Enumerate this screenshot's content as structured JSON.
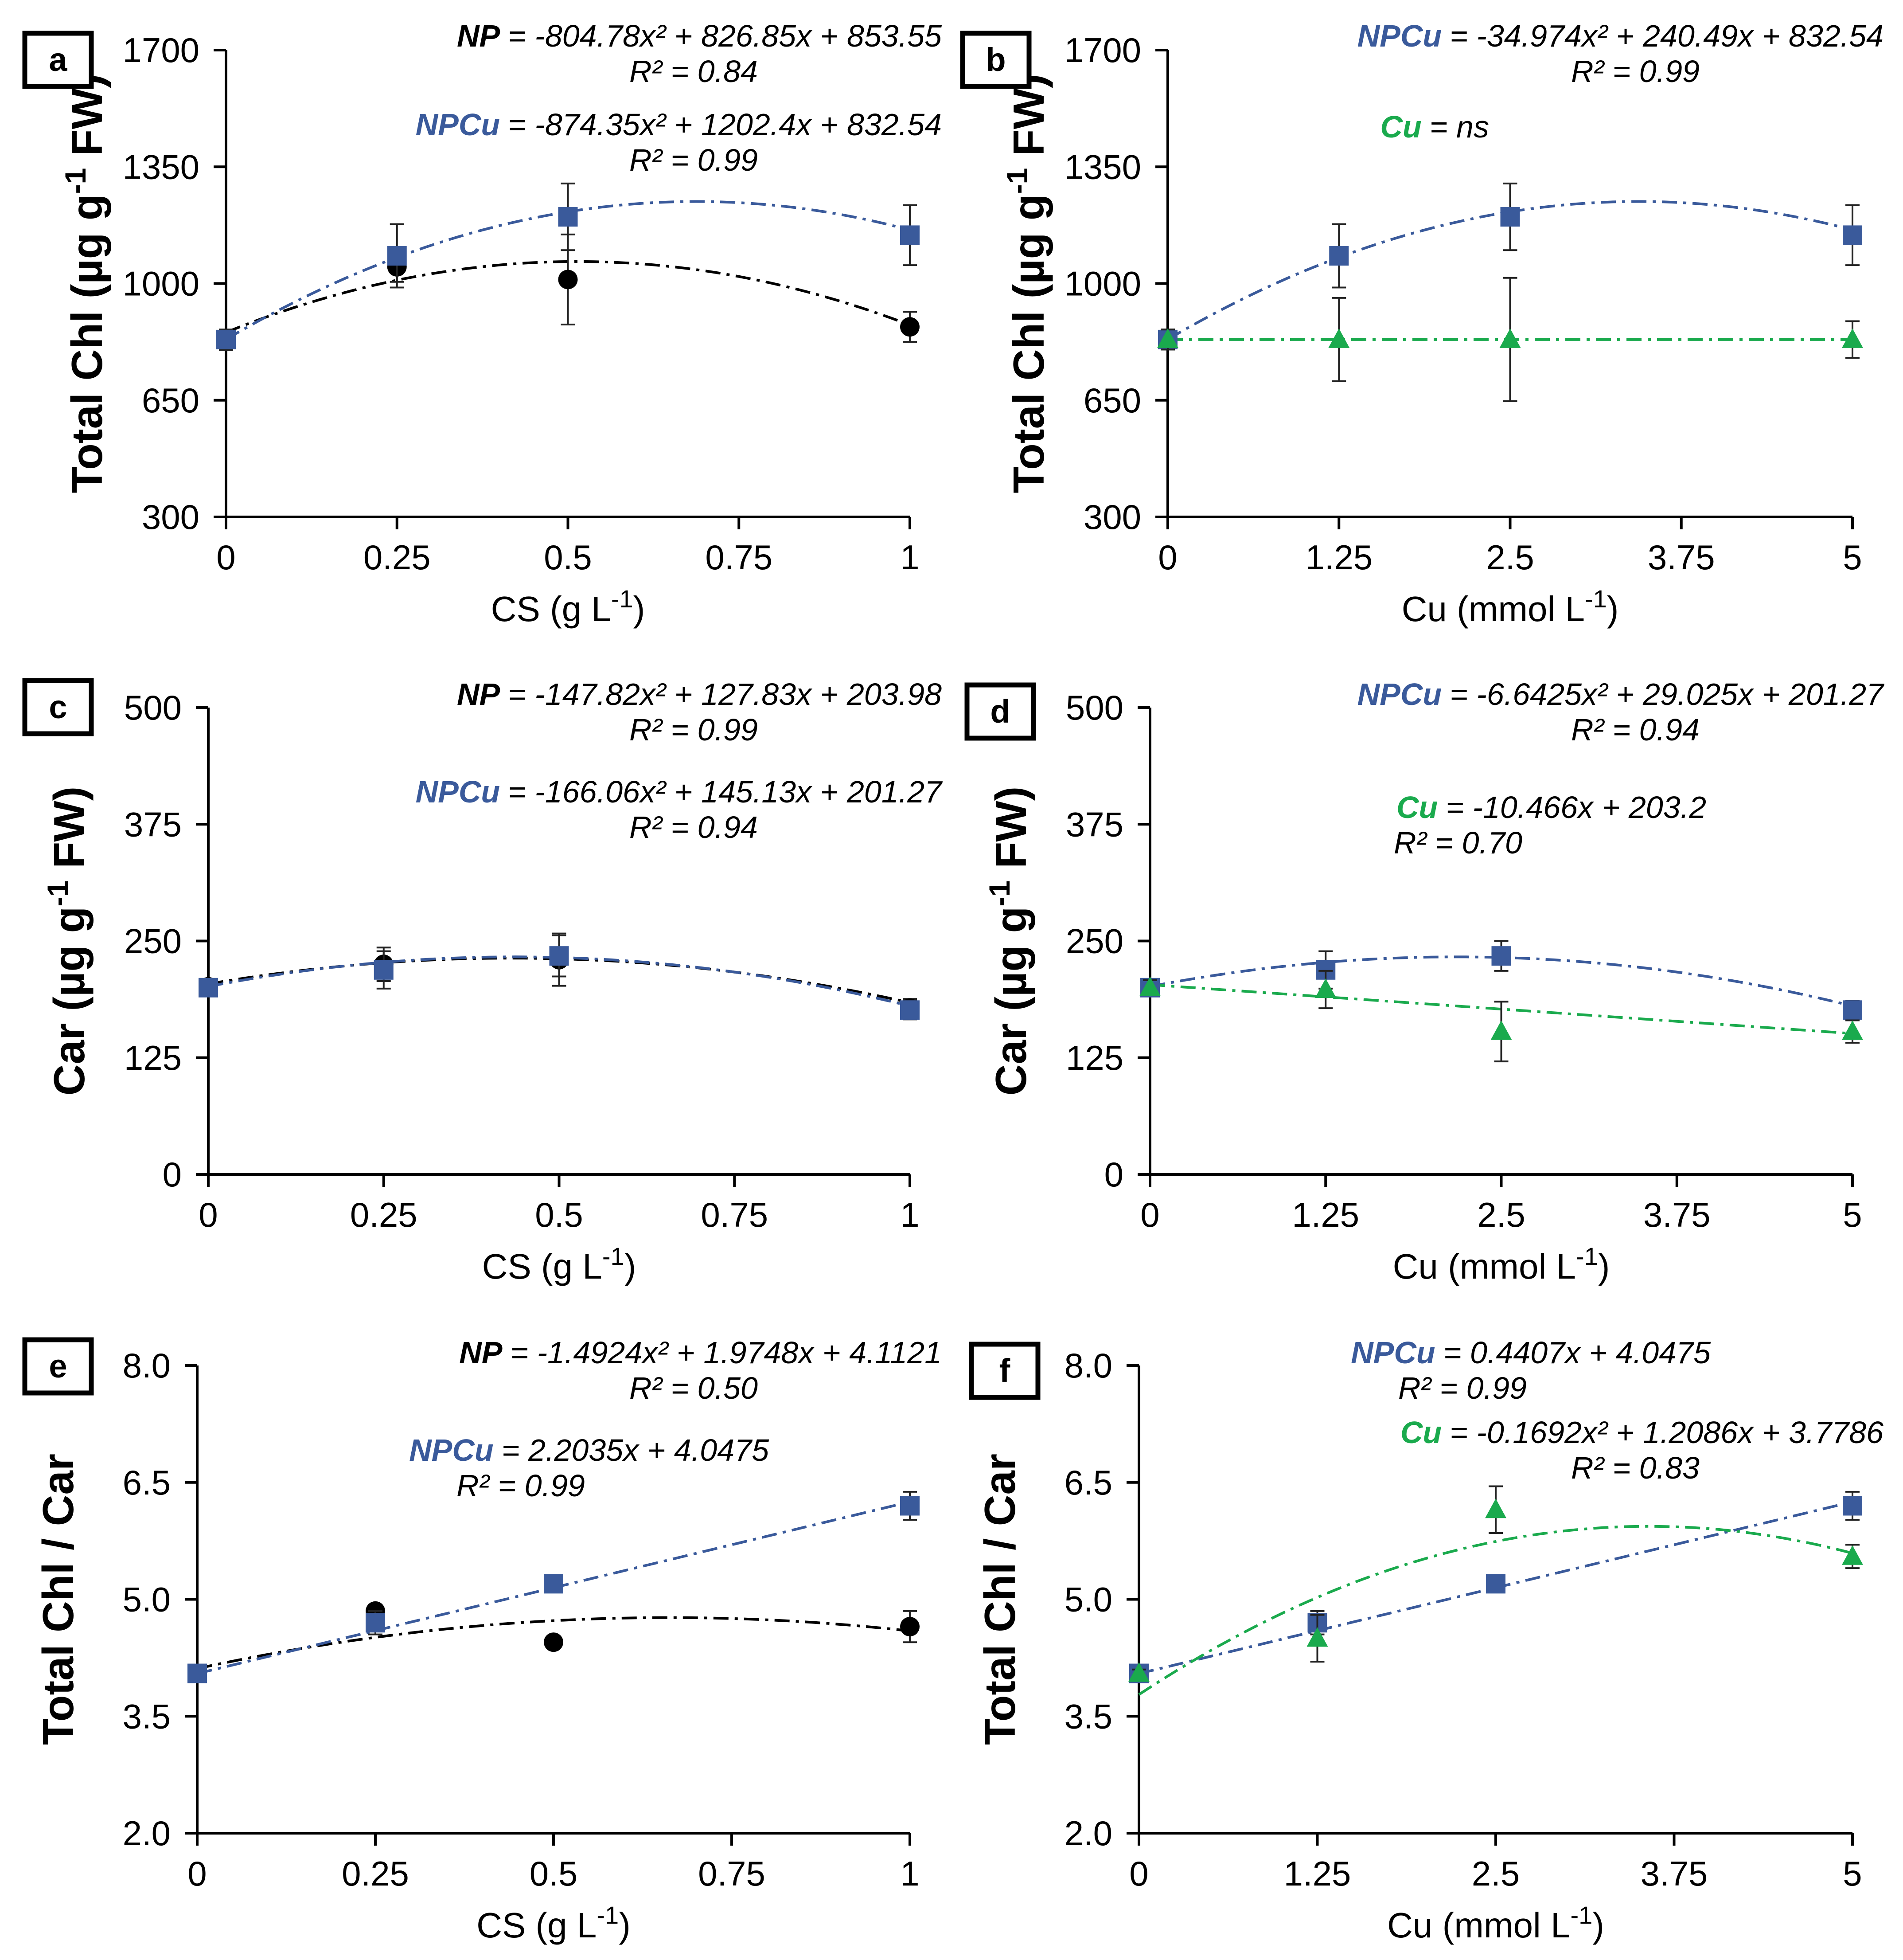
{
  "colors": {
    "NP": "#000000",
    "NPCu": "#3a5a9b",
    "Cu": "#1aaa4d",
    "axis": "#000000"
  },
  "chart_data": [
    {
      "panel": "a",
      "type": "scatter",
      "xlabel": "CS (g L-1)",
      "ylabel": "Total Chl (µg g-1 FW)",
      "x_ticks": [
        "0",
        "0.25",
        "0.5",
        "0.75",
        "1"
      ],
      "x_tick_values": [
        0,
        0.25,
        0.5,
        0.75,
        1
      ],
      "y_ticks": [
        "300",
        "650",
        "1000",
        "1350",
        "1700"
      ],
      "y_tick_values": [
        300,
        650,
        1000,
        1350,
        1700
      ],
      "xlim": [
        0,
        1
      ],
      "ylim": [
        300,
        1700
      ],
      "series": [
        {
          "name": "NP",
          "key": "NP",
          "marker": "circle",
          "x": [
            0,
            0.25,
            0.5,
            1
          ],
          "y": [
            830,
            1050,
            1012,
            870
          ],
          "err": [
            30,
            45,
            135,
            45
          ],
          "fit": {
            "a": -804.78,
            "b": 826.85,
            "c": 853.55
          }
        },
        {
          "name": "NPCu",
          "key": "NPCu",
          "marker": "square",
          "x": [
            0,
            0.25,
            0.5,
            1
          ],
          "y": [
            832,
            1083,
            1200,
            1145
          ],
          "err": [
            30,
            95,
            100,
            90
          ],
          "fit": {
            "a": -874.35,
            "b": 1202.4,
            "c": 832.54
          }
        }
      ],
      "equations": [
        {
          "key": "NP",
          "name": "NP",
          "formula": "= -804.78x² + 826.85x + 853.55",
          "r2": "R² = 0.84"
        },
        {
          "key": "NPCu",
          "name": "NPCu",
          "formula": "= -874.35x² + 1202.4x + 832.54",
          "r2": "R² = 0.99"
        }
      ]
    },
    {
      "panel": "b",
      "type": "scatter",
      "xlabel": "Cu (mmol L-1)",
      "ylabel": "Total Chl (µg g-1 FW)",
      "x_ticks": [
        "0",
        "1.25",
        "2.5",
        "3.75",
        "5"
      ],
      "x_tick_values": [
        0,
        1.25,
        2.5,
        3.75,
        5
      ],
      "y_ticks": [
        "300",
        "650",
        "1000",
        "1350",
        "1700"
      ],
      "y_tick_values": [
        300,
        650,
        1000,
        1350,
        1700
      ],
      "xlim": [
        0,
        5
      ],
      "ylim": [
        300,
        1700
      ],
      "series": [
        {
          "name": "NPCu",
          "key": "NPCu",
          "marker": "square",
          "x": [
            0,
            1.25,
            2.5,
            5
          ],
          "y": [
            832,
            1083,
            1200,
            1145
          ],
          "err": [
            30,
            95,
            100,
            90
          ],
          "fit": {
            "a": -34.974,
            "b": 240.49,
            "c": 832.54
          }
        },
        {
          "name": "Cu",
          "key": "Cu",
          "marker": "triangle",
          "x": [
            0,
            1.25,
            2.5,
            5
          ],
          "y": [
            832,
            832,
            832,
            832
          ],
          "err": [
            30,
            125,
            185,
            55
          ],
          "fit": {
            "a": 0,
            "b": 0,
            "c": 832
          }
        }
      ],
      "equations": [
        {
          "key": "NPCu",
          "name": "NPCu",
          "formula": "= -34.974x² + 240.49x + 832.54",
          "r2": "R² = 0.99"
        },
        {
          "key": "Cu",
          "name": "Cu",
          "formula": "= ns",
          "r2": ""
        }
      ]
    },
    {
      "panel": "c",
      "type": "scatter",
      "xlabel": "CS (g L-1)",
      "ylabel": "Car (µg g-1 FW)",
      "x_ticks": [
        "0",
        "0.25",
        "0.5",
        "0.75",
        "1"
      ],
      "x_tick_values": [
        0,
        0.25,
        0.5,
        0.75,
        1
      ],
      "y_ticks": [
        "0",
        "125",
        "250",
        "375",
        "500"
      ],
      "y_tick_values": [
        0,
        125,
        250,
        375,
        500
      ],
      "xlim": [
        0,
        1
      ],
      "ylim": [
        0,
        500
      ],
      "series": [
        {
          "name": "NP",
          "key": "NP",
          "marker": "circle",
          "x": [
            0,
            0.25,
            0.5,
            1
          ],
          "y": [
            201,
            225,
            230,
            178
          ],
          "err": [
            8,
            18,
            28,
            10
          ],
          "fit": {
            "a": -147.82,
            "b": 127.83,
            "c": 203.98
          }
        },
        {
          "name": "NPCu",
          "key": "NPCu",
          "marker": "square",
          "x": [
            0,
            0.25,
            0.5,
            1
          ],
          "y": [
            200,
            219,
            234,
            176
          ],
          "err": [
            8,
            20,
            22,
            10
          ],
          "fit": {
            "a": -166.06,
            "b": 145.13,
            "c": 201.27
          }
        }
      ],
      "equations": [
        {
          "key": "NP",
          "name": "NP",
          "formula": "= -147.82x² + 127.83x + 203.98",
          "r2": "R² = 0.99"
        },
        {
          "key": "NPCu",
          "name": "NPCu",
          "formula": "= -166.06x² + 145.13x + 201.27",
          "r2": "R² = 0.94"
        }
      ]
    },
    {
      "panel": "d",
      "type": "scatter",
      "xlabel": "Cu (mmol L-1)",
      "ylabel": "Car (µg g-1 FW)",
      "x_ticks": [
        "0",
        "1.25",
        "2.5",
        "3.75",
        "5"
      ],
      "x_tick_values": [
        0,
        1.25,
        2.5,
        3.75,
        5
      ],
      "y_ticks": [
        "0",
        "125",
        "250",
        "375",
        "500"
      ],
      "y_tick_values": [
        0,
        125,
        250,
        375,
        500
      ],
      "xlim": [
        0,
        5
      ],
      "ylim": [
        0,
        500
      ],
      "series": [
        {
          "name": "NPCu",
          "key": "NPCu",
          "marker": "square",
          "x": [
            0,
            1.25,
            2.5,
            5
          ],
          "y": [
            200,
            219,
            234,
            176
          ],
          "err": [
            8,
            20,
            16,
            10
          ],
          "fit": {
            "a": -6.6425,
            "b": 29.025,
            "c": 201.27
          }
        },
        {
          "name": "Cu",
          "key": "Cu",
          "marker": "triangle",
          "x": [
            0,
            1.25,
            2.5,
            5
          ],
          "y": [
            200,
            198,
            153,
            153
          ],
          "err": [
            8,
            20,
            32,
            12
          ],
          "fit": {
            "a": 0,
            "b": -10.466,
            "c": 203.2
          }
        }
      ],
      "equations": [
        {
          "key": "NPCu",
          "name": "NPCu",
          "formula": "= -6.6425x² + 29.025x + 201.27",
          "r2": "R² = 0.94"
        },
        {
          "key": "Cu",
          "name": "Cu",
          "formula": "= -10.466x + 203.2",
          "r2": "R² = 0.70"
        }
      ]
    },
    {
      "panel": "e",
      "type": "scatter",
      "xlabel": "CS (g L-1)",
      "ylabel": "Total Chl / Car",
      "x_ticks": [
        "0",
        "0.25",
        "0.5",
        "0.75",
        "1"
      ],
      "x_tick_values": [
        0,
        0.25,
        0.5,
        0.75,
        1
      ],
      "y_ticks": [
        "2.0",
        "3.5",
        "5.0",
        "6.5",
        "8.0"
      ],
      "y_tick_values": [
        2.0,
        3.5,
        5.0,
        6.5,
        8.0
      ],
      "xlim": [
        0,
        1
      ],
      "ylim": [
        2.0,
        8.0
      ],
      "series": [
        {
          "name": "NP",
          "key": "NP",
          "marker": "circle",
          "x": [
            0,
            0.25,
            0.5,
            1
          ],
          "y": [
            4.05,
            4.85,
            4.45,
            4.65
          ],
          "err": [
            0.05,
            0.08,
            0.05,
            0.2
          ],
          "fit": {
            "a": -1.4924,
            "b": 1.9748,
            "c": 4.1121
          }
        },
        {
          "name": "NPCu",
          "key": "NPCu",
          "marker": "square",
          "x": [
            0,
            0.25,
            0.5,
            1
          ],
          "y": [
            4.05,
            4.7,
            5.2,
            6.2
          ],
          "err": [
            0.05,
            0.15,
            0.05,
            0.18
          ],
          "fit": {
            "a": 0,
            "b": 2.2035,
            "c": 4.0475
          }
        }
      ],
      "equations": [
        {
          "key": "NP",
          "name": "NP",
          "formula": "= -1.4924x² + 1.9748x + 4.1121",
          "r2": "R² = 0.50"
        },
        {
          "key": "NPCu",
          "name": "NPCu",
          "formula": "= 2.2035x + 4.0475",
          "r2": "R² = 0.99"
        }
      ]
    },
    {
      "panel": "f",
      "type": "scatter",
      "xlabel": "Cu (mmol L-1)",
      "ylabel": "Total Chl / Car",
      "x_ticks": [
        "0",
        "1.25",
        "2.5",
        "3.75",
        "5"
      ],
      "x_tick_values": [
        0,
        1.25,
        2.5,
        3.75,
        5
      ],
      "y_ticks": [
        "2.0",
        "3.5",
        "5.0",
        "6.5",
        "8.0"
      ],
      "y_tick_values": [
        2.0,
        3.5,
        5.0,
        6.5,
        8.0
      ],
      "xlim": [
        0,
        5
      ],
      "ylim": [
        2.0,
        8.0
      ],
      "series": [
        {
          "name": "NPCu",
          "key": "NPCu",
          "marker": "square",
          "x": [
            0,
            1.25,
            2.5,
            5
          ],
          "y": [
            4.05,
            4.7,
            5.2,
            6.2
          ],
          "err": [
            0.05,
            0.15,
            0.05,
            0.18
          ],
          "fit": {
            "a": 0,
            "b": 0.4407,
            "c": 4.0475
          }
        },
        {
          "name": "Cu",
          "key": "Cu",
          "marker": "triangle",
          "x": [
            0,
            1.25,
            2.5,
            5
          ],
          "y": [
            4.05,
            4.5,
            6.15,
            5.55
          ],
          "err": [
            0.05,
            0.3,
            0.3,
            0.15
          ],
          "fit": {
            "a": -0.1692,
            "b": 1.2086,
            "c": 3.7786
          }
        }
      ],
      "equations": [
        {
          "key": "NPCu",
          "name": "NPCu",
          "formula": "= 0.4407x + 4.0475",
          "r2": "R² = 0.99"
        },
        {
          "key": "Cu",
          "name": "Cu",
          "formula": "= -0.1692x² + 1.2086x + 3.7786",
          "r2": "R² = 0.83"
        }
      ]
    }
  ]
}
